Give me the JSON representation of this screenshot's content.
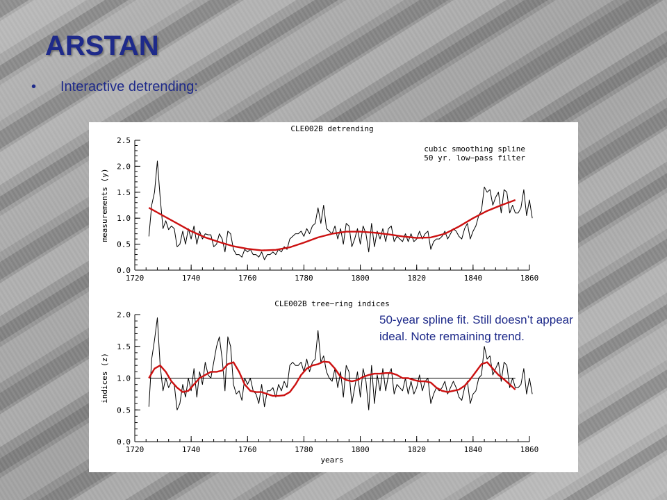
{
  "slide": {
    "title": "ARSTAN",
    "bullet": "Interactive detrending:",
    "note": "50-year spline fit. Still doesn’t appear ideal. Note remaining trend.",
    "colors": {
      "title": "#1e2a8a",
      "fit": "#cc1111",
      "series": "#000000"
    }
  },
  "chart_data": [
    {
      "type": "line",
      "title": "CLE002B detrending",
      "annotations": [
        "cubic smoothing spline",
        "50 yr. low−pass filter"
      ],
      "xlabel": "",
      "ylabel": "measurements (y)",
      "xlim": [
        1720,
        1860
      ],
      "ylim": [
        0.0,
        2.5
      ],
      "x_ticks": [
        "1720",
        "1740",
        "1760",
        "1780",
        "1800",
        "1820",
        "1840",
        "1860"
      ],
      "y_ticks": [
        "0.0",
        "0.5",
        "1.0",
        "1.5",
        "2.0",
        "2.5"
      ],
      "grid": false,
      "series": [
        {
          "style": "raw",
          "color": "#000000",
          "x_start": 1725,
          "values": [
            0.65,
            1.25,
            1.5,
            2.1,
            1.4,
            0.8,
            0.95,
            0.78,
            0.85,
            0.8,
            0.45,
            0.5,
            0.75,
            0.5,
            0.8,
            0.6,
            0.85,
            0.5,
            0.75,
            0.6,
            0.7,
            0.68,
            0.68,
            0.45,
            0.5,
            0.7,
            0.6,
            0.35,
            0.75,
            0.7,
            0.4,
            0.3,
            0.3,
            0.25,
            0.4,
            0.35,
            0.4,
            0.3,
            0.3,
            0.25,
            0.35,
            0.2,
            0.3,
            0.3,
            0.35,
            0.3,
            0.4,
            0.35,
            0.45,
            0.4,
            0.6,
            0.65,
            0.7,
            0.7,
            0.75,
            0.65,
            0.8,
            0.7,
            0.85,
            0.9,
            1.2,
            0.9,
            1.25,
            0.8,
            0.75,
            0.7,
            0.85,
            0.6,
            0.8,
            0.5,
            0.9,
            0.85,
            0.45,
            0.6,
            0.8,
            0.5,
            0.85,
            0.7,
            0.35,
            0.9,
            0.45,
            0.75,
            0.6,
            0.8,
            0.55,
            0.8,
            0.85,
            0.55,
            0.65,
            0.6,
            0.55,
            0.7,
            0.55,
            0.7,
            0.55,
            0.6,
            0.75,
            0.6,
            0.7,
            0.75,
            0.4,
            0.55,
            0.6,
            0.6,
            0.65,
            0.75,
            0.6,
            0.7,
            0.8,
            0.75,
            0.65,
            0.6,
            0.8,
            0.9,
            0.6,
            0.75,
            0.85,
            1.05,
            1.15,
            1.6,
            1.5,
            1.55,
            1.25,
            1.4,
            1.5,
            1.1,
            1.55,
            1.5,
            1.1,
            1.25,
            1.1,
            1.1,
            1.2,
            1.55,
            1.05,
            1.35,
            1.0
          ]
        },
        {
          "style": "fit",
          "color": "#cc1111",
          "x": [
            1725,
            1730,
            1735,
            1740,
            1745,
            1750,
            1755,
            1760,
            1765,
            1770,
            1775,
            1780,
            1785,
            1790,
            1795,
            1800,
            1805,
            1810,
            1815,
            1820,
            1825,
            1830,
            1835,
            1840,
            1845,
            1850,
            1855
          ],
          "values": [
            1.2,
            1.05,
            0.9,
            0.75,
            0.63,
            0.54,
            0.46,
            0.41,
            0.38,
            0.39,
            0.44,
            0.53,
            0.63,
            0.7,
            0.74,
            0.74,
            0.72,
            0.69,
            0.65,
            0.62,
            0.63,
            0.7,
            0.84,
            1.0,
            1.14,
            1.25,
            1.35
          ]
        }
      ]
    },
    {
      "type": "line",
      "title": "CLE002B tree−ring indices",
      "xlabel": "years",
      "ylabel": "indices (z)",
      "xlim": [
        1720,
        1860
      ],
      "ylim": [
        0.0,
        2.0
      ],
      "x_ticks": [
        "1720",
        "1740",
        "1760",
        "1780",
        "1800",
        "1820",
        "1840",
        "1860"
      ],
      "y_ticks": [
        "0.0",
        "0.5",
        "1.0",
        "1.5",
        "2.0"
      ],
      "grid": false,
      "reference_line": 1.0,
      "series": [
        {
          "style": "raw",
          "color": "#000000",
          "x_start": 1725,
          "values": [
            0.55,
            1.3,
            1.6,
            1.95,
            1.2,
            0.8,
            1.0,
            0.85,
            0.95,
            0.9,
            0.5,
            0.6,
            0.9,
            0.7,
            1.0,
            0.8,
            1.15,
            0.7,
            1.1,
            0.9,
            1.25,
            1.05,
            1.0,
            1.25,
            1.5,
            1.65,
            1.3,
            0.8,
            1.65,
            1.5,
            0.9,
            0.75,
            0.8,
            0.65,
            1.0,
            0.9,
            1.0,
            0.8,
            0.75,
            0.6,
            0.9,
            0.55,
            0.8,
            0.8,
            0.85,
            0.7,
            0.9,
            0.8,
            0.95,
            0.85,
            1.2,
            1.25,
            1.2,
            1.2,
            1.25,
            1.1,
            1.3,
            1.1,
            1.25,
            1.3,
            1.75,
            1.25,
            1.35,
            1.1,
            1.0,
            0.95,
            1.15,
            0.85,
            1.1,
            0.7,
            1.2,
            1.1,
            0.6,
            0.85,
            1.1,
            0.7,
            1.15,
            0.95,
            0.5,
            1.2,
            0.6,
            1.05,
            0.8,
            1.15,
            0.8,
            1.05,
            1.15,
            0.75,
            0.9,
            0.85,
            0.8,
            1.0,
            0.75,
            0.95,
            0.75,
            0.85,
            1.05,
            0.8,
            0.95,
            1.0,
            0.6,
            0.75,
            0.85,
            0.8,
            0.85,
            0.95,
            0.75,
            0.85,
            0.95,
            0.85,
            0.7,
            0.65,
            0.85,
            0.95,
            0.6,
            0.75,
            0.8,
            1.0,
            1.05,
            1.5,
            1.3,
            1.35,
            1.05,
            1.15,
            1.25,
            0.95,
            1.25,
            1.2,
            0.85,
            1.0,
            0.85,
            0.85,
            0.9,
            1.15,
            0.75,
            1.0,
            0.75
          ]
        },
        {
          "style": "fit",
          "color": "#cc1111",
          "x": [
            1725,
            1727,
            1729,
            1731,
            1733,
            1735,
            1737,
            1739,
            1741,
            1743,
            1745,
            1747,
            1749,
            1751,
            1753,
            1755,
            1757,
            1759,
            1761,
            1763,
            1765,
            1767,
            1769,
            1771,
            1773,
            1775,
            1777,
            1779,
            1781,
            1783,
            1785,
            1787,
            1789,
            1791,
            1793,
            1795,
            1797,
            1799,
            1801,
            1803,
            1805,
            1807,
            1809,
            1811,
            1813,
            1815,
            1817,
            1819,
            1821,
            1823,
            1825,
            1827,
            1829,
            1831,
            1833,
            1835,
            1837,
            1839,
            1841,
            1843,
            1845,
            1847,
            1849,
            1851,
            1853,
            1855
          ],
          "values": [
            1.0,
            1.15,
            1.2,
            1.1,
            0.95,
            0.85,
            0.78,
            0.8,
            0.9,
            1.0,
            1.05,
            1.1,
            1.1,
            1.12,
            1.22,
            1.25,
            1.1,
            0.9,
            0.8,
            0.78,
            0.78,
            0.75,
            0.72,
            0.72,
            0.73,
            0.78,
            0.9,
            1.05,
            1.15,
            1.2,
            1.22,
            1.26,
            1.25,
            1.15,
            1.02,
            0.97,
            0.95,
            0.97,
            1.02,
            1.05,
            1.07,
            1.07,
            1.08,
            1.08,
            1.05,
            1.0,
            1.0,
            0.97,
            0.95,
            0.95,
            0.93,
            0.85,
            0.8,
            0.78,
            0.8,
            0.82,
            0.88,
            0.98,
            1.1,
            1.22,
            1.25,
            1.15,
            1.05,
            0.98,
            0.9,
            0.82
          ]
        }
      ]
    }
  ]
}
